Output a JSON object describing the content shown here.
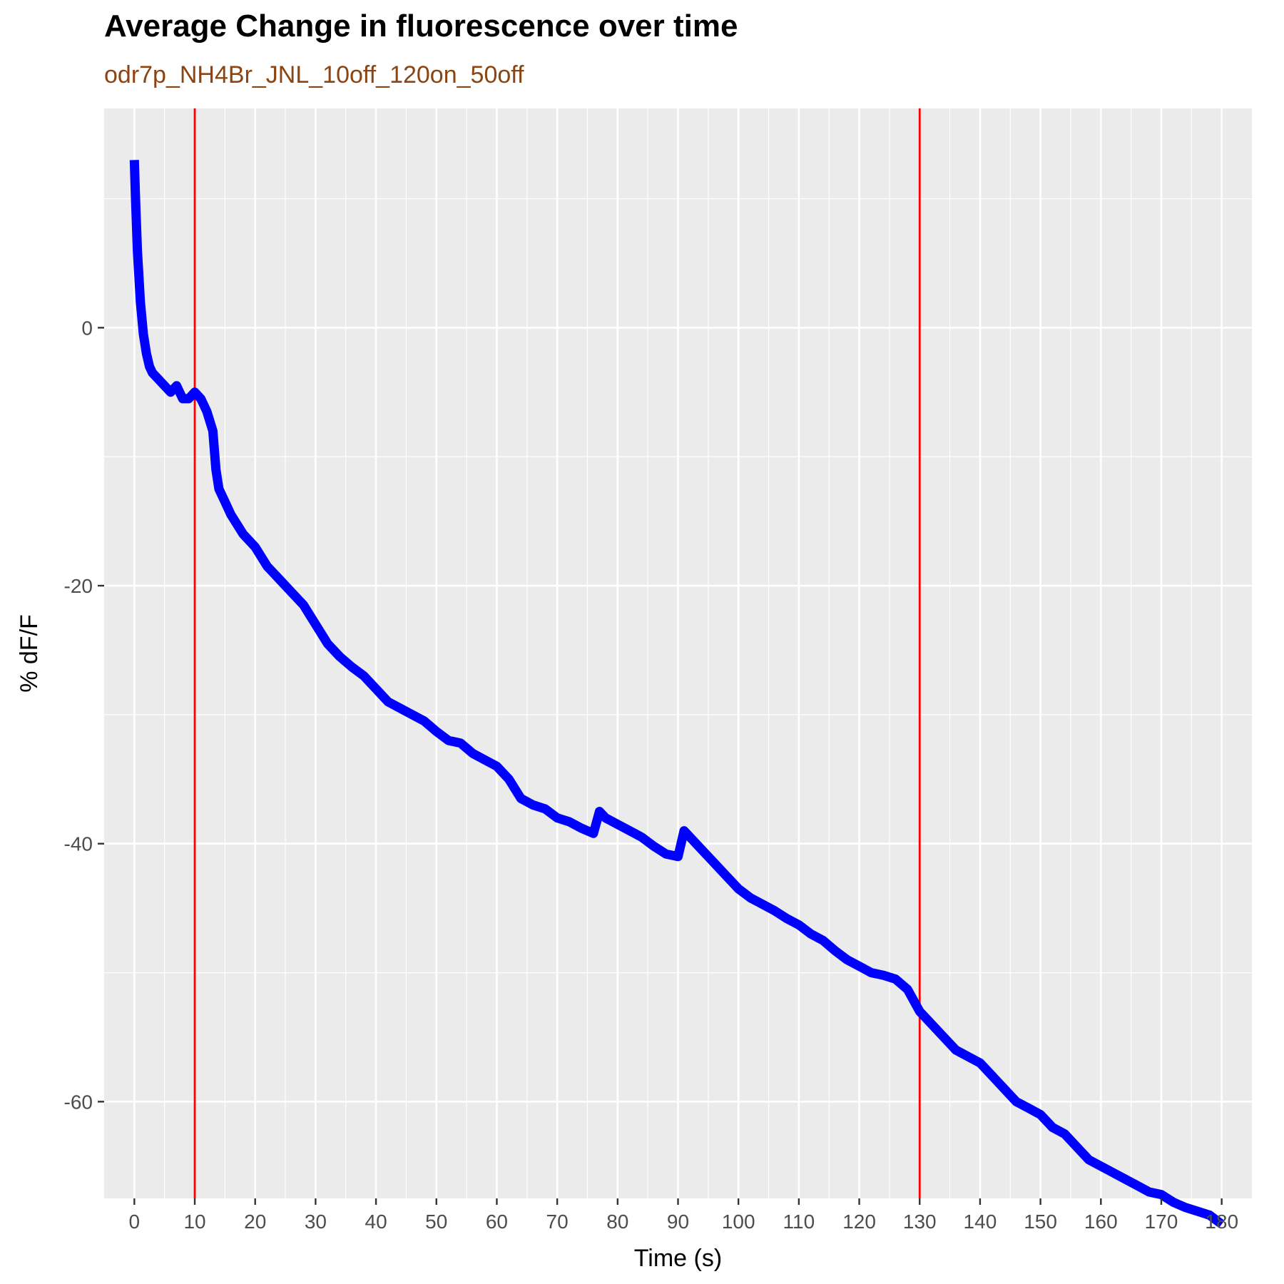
{
  "chart_data": {
    "type": "line",
    "title": "Average Change in fluorescence over time",
    "subtitle": "odr7p_NH4Br_JNL_10off_120on_50off",
    "xlabel": "Time (s)",
    "ylabel": "% dF/F",
    "xlim": [
      -5,
      185
    ],
    "ylim": [
      -67.5,
      17
    ],
    "x_ticks": [
      0,
      10,
      20,
      30,
      40,
      50,
      60,
      70,
      80,
      90,
      100,
      110,
      120,
      130,
      140,
      150,
      160,
      170,
      180
    ],
    "y_ticks": [
      0,
      -20,
      -40,
      -60
    ],
    "grid": true,
    "legend": "none",
    "vlines": [
      10,
      130
    ],
    "colors": {
      "series": "#0000ff",
      "vline": "#ff0000",
      "panel": "#ebebeb",
      "grid": "#ffffff",
      "subtitle": "#8b4513"
    },
    "series": [
      {
        "x": [
          0,
          0.2,
          0.5,
          1,
          1.5,
          2,
          2.5,
          3,
          4,
          5,
          6,
          7,
          8,
          9,
          10,
          11,
          12,
          13,
          13.5,
          14,
          15,
          16,
          18,
          20,
          22,
          24,
          26,
          28,
          30,
          32,
          34,
          36,
          38,
          40,
          42,
          44,
          46,
          48,
          50,
          52,
          54,
          56,
          58,
          60,
          62,
          64,
          66,
          68,
          70,
          72,
          74,
          76,
          77,
          78,
          80,
          82,
          84,
          86,
          88,
          90,
          91,
          92,
          94,
          96,
          98,
          100,
          102,
          104,
          106,
          108,
          110,
          112,
          114,
          116,
          118,
          120,
          122,
          124,
          126,
          128,
          130,
          132,
          134,
          136,
          138,
          140,
          142,
          144,
          146,
          148,
          150,
          152,
          154,
          156,
          158,
          160,
          162,
          164,
          166,
          168,
          170,
          172,
          174,
          176,
          178,
          180
        ],
        "y": [
          13,
          10,
          6,
          2,
          -0.5,
          -2,
          -3,
          -3.5,
          -4,
          -4.5,
          -5,
          -4.5,
          -5.5,
          -5.5,
          -5,
          -5.5,
          -6.5,
          -8,
          -11,
          -12.5,
          -13.5,
          -14.5,
          -16,
          -17,
          -18.5,
          -19.5,
          -20.5,
          -21.5,
          -23,
          -24.5,
          -25.5,
          -26.3,
          -27,
          -28,
          -29,
          -29.5,
          -30,
          -30.5,
          -31.3,
          -32,
          -32.2,
          -33,
          -33.5,
          -34,
          -35,
          -36.5,
          -37,
          -37.3,
          -38,
          -38.3,
          -38.8,
          -39.2,
          -37.5,
          -38,
          -38.5,
          -39,
          -39.5,
          -40.2,
          -40.8,
          -41,
          -39,
          -39.5,
          -40.5,
          -41.5,
          -42.5,
          -43.5,
          -44.2,
          -44.7,
          -45.2,
          -45.8,
          -46.3,
          -47,
          -47.5,
          -48.3,
          -49,
          -49.5,
          -50,
          -50.2,
          -50.5,
          -51.3,
          -53,
          -54,
          -55,
          -56,
          -56.5,
          -57,
          -58,
          -59,
          -60,
          -60.5,
          -61,
          -62,
          -62.5,
          -63.5,
          -64.5,
          -65,
          -65.5,
          -66,
          -66.5,
          -67,
          -67.2,
          -67.8,
          -68.2,
          -68.5,
          -68.8,
          -69.5
        ]
      }
    ]
  }
}
